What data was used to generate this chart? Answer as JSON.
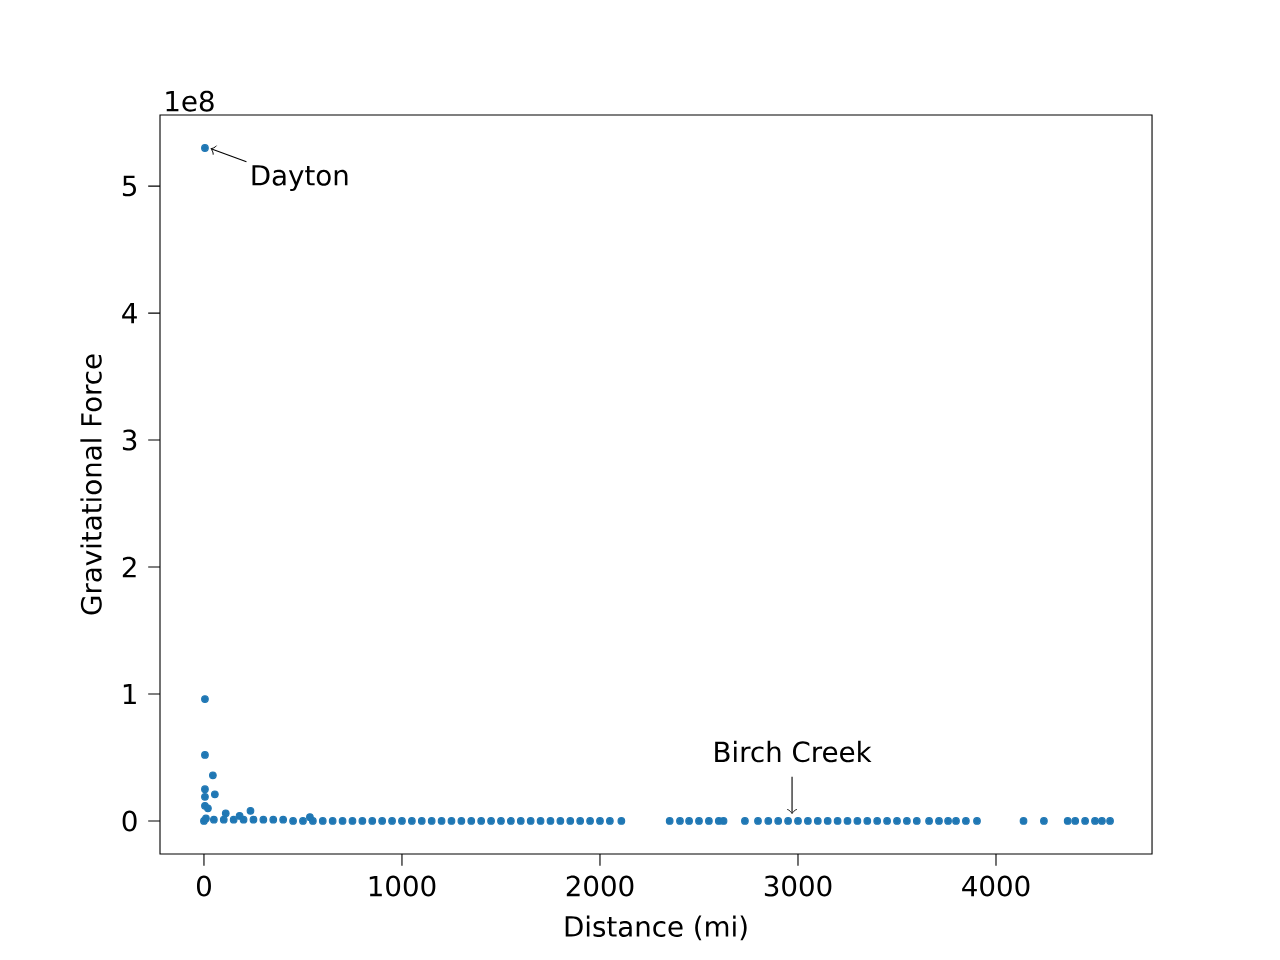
{
  "chart_data": {
    "type": "scatter",
    "xlabel": "Distance (mi)",
    "ylabel": "Gravitational Force",
    "x": [
      5,
      5,
      5,
      45,
      55,
      5,
      5,
      5,
      20,
      110,
      180,
      235,
      535,
      0,
      10,
      50,
      100,
      150,
      200,
      250,
      300,
      350,
      400,
      450,
      500,
      550,
      600,
      650,
      700,
      750,
      800,
      850,
      900,
      950,
      1000,
      1050,
      1100,
      1150,
      1200,
      1250,
      1300,
      1350,
      1400,
      1450,
      1500,
      1550,
      1600,
      1650,
      1700,
      1750,
      1800,
      1850,
      1900,
      1950,
      2000,
      2050,
      2108,
      2352,
      2404,
      2450,
      2500,
      2550,
      2600,
      2624,
      2732,
      2798,
      2850,
      2900,
      2950,
      3000,
      3050,
      3100,
      3150,
      3200,
      3250,
      3300,
      3350,
      3400,
      3450,
      3500,
      3550,
      3600,
      3662,
      3712,
      3758,
      3798,
      3848,
      3904,
      4139,
      4242,
      4362,
      4400,
      4450,
      4500,
      4535,
      4576
    ],
    "values": [
      5.3,
      0.96,
      0.52,
      0.36,
      0.21,
      0.25,
      0.19,
      0.12,
      0.1,
      0.06,
      0.04,
      0.08,
      0.03,
      0,
      0.02,
      0.01,
      0.01,
      0.01,
      0.01,
      0.01,
      0.01,
      0.01,
      0.01,
      0,
      0,
      0,
      0,
      0,
      0,
      0,
      0,
      0,
      0,
      0,
      0,
      0,
      0,
      0,
      0,
      0,
      0,
      0,
      0,
      0,
      0,
      0,
      0,
      0,
      0,
      0,
      0,
      0,
      0,
      0,
      0,
      0,
      0,
      0,
      0,
      0,
      0,
      0,
      0,
      0,
      0,
      0,
      0,
      0,
      0,
      0,
      0,
      0,
      0,
      0,
      0,
      0,
      0,
      0,
      0,
      0,
      0,
      0,
      0,
      0,
      0,
      0,
      0,
      0,
      0,
      0,
      0,
      0,
      0,
      0,
      0,
      0
    ],
    "color": "#1f77b4",
    "marker": "circle",
    "xlim": [
      -222,
      4788
    ],
    "ylim": [
      -0.26,
      5.56
    ],
    "xticks": [
      0,
      1000,
      2000,
      3000,
      4000
    ],
    "yticks": [
      0,
      1,
      2,
      3,
      4,
      5
    ],
    "annotations": [
      "1e8",
      {
        "text": "Dayton",
        "x": 5,
        "y": 5.3
      },
      {
        "text": "Birch Creek",
        "x": 2970,
        "y": 0
      }
    ]
  }
}
